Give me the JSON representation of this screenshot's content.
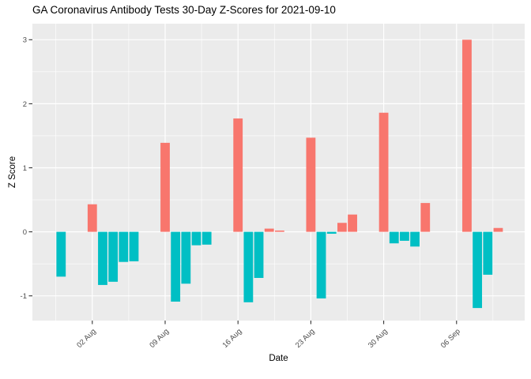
{
  "chart_data": {
    "type": "bar",
    "title": "GA Coronavirus Antibody Tests 30-Day Z-Scores for 2021-09-10",
    "xlabel": "Date",
    "ylabel": "Z Score",
    "legend": "none",
    "grid": true,
    "y_ticks": [
      -1,
      0,
      1,
      2,
      3
    ],
    "y_minor_ticks": [
      -0.5,
      0.5,
      1.5,
      2.5
    ],
    "ylim": [
      -1.39,
      3.25
    ],
    "x_ticks": [
      {
        "date": "2021-08-02",
        "label": "02 Aug"
      },
      {
        "date": "2021-08-09",
        "label": "09 Aug"
      },
      {
        "date": "2021-08-16",
        "label": "16 Aug"
      },
      {
        "date": "2021-08-23",
        "label": "23 Aug"
      },
      {
        "date": "2021-08-30",
        "label": "30 Aug"
      },
      {
        "date": "2021-09-06",
        "label": "06 Sep"
      }
    ],
    "colors": {
      "positive": "#F8766D",
      "negative": "#00BFC4",
      "panel_bg": "#EBEBEB",
      "grid": "#FFFFFF",
      "tick_text": "#4D4D4D",
      "tick_mark": "#333333",
      "title_text": "#000000"
    },
    "series": [
      {
        "date": "2021-07-30",
        "value": -0.7
      },
      {
        "date": "2021-08-02",
        "value": 0.43
      },
      {
        "date": "2021-08-03",
        "value": -0.83
      },
      {
        "date": "2021-08-04",
        "value": -0.78
      },
      {
        "date": "2021-08-05",
        "value": -0.47
      },
      {
        "date": "2021-08-06",
        "value": -0.46
      },
      {
        "date": "2021-08-09",
        "value": 1.39
      },
      {
        "date": "2021-08-10",
        "value": -1.09
      },
      {
        "date": "2021-08-11",
        "value": -0.81
      },
      {
        "date": "2021-08-12",
        "value": -0.21
      },
      {
        "date": "2021-08-13",
        "value": -0.2
      },
      {
        "date": "2021-08-16",
        "value": 1.77
      },
      {
        "date": "2021-08-17",
        "value": -1.1
      },
      {
        "date": "2021-08-18",
        "value": -0.72
      },
      {
        "date": "2021-08-19",
        "value": 0.05
      },
      {
        "date": "2021-08-20",
        "value": 0.02
      },
      {
        "date": "2021-08-23",
        "value": 1.47
      },
      {
        "date": "2021-08-24",
        "value": -1.04
      },
      {
        "date": "2021-08-25",
        "value": -0.03
      },
      {
        "date": "2021-08-26",
        "value": 0.14
      },
      {
        "date": "2021-08-27",
        "value": 0.27
      },
      {
        "date": "2021-08-30",
        "value": 1.86
      },
      {
        "date": "2021-08-31",
        "value": -0.18
      },
      {
        "date": "2021-09-01",
        "value": -0.14
      },
      {
        "date": "2021-09-02",
        "value": -0.23
      },
      {
        "date": "2021-09-03",
        "value": 0.45
      },
      {
        "date": "2021-09-07",
        "value": 3.0
      },
      {
        "date": "2021-09-08",
        "value": -1.19
      },
      {
        "date": "2021-09-09",
        "value": -0.67
      },
      {
        "date": "2021-09-10",
        "value": 0.06
      }
    ]
  }
}
